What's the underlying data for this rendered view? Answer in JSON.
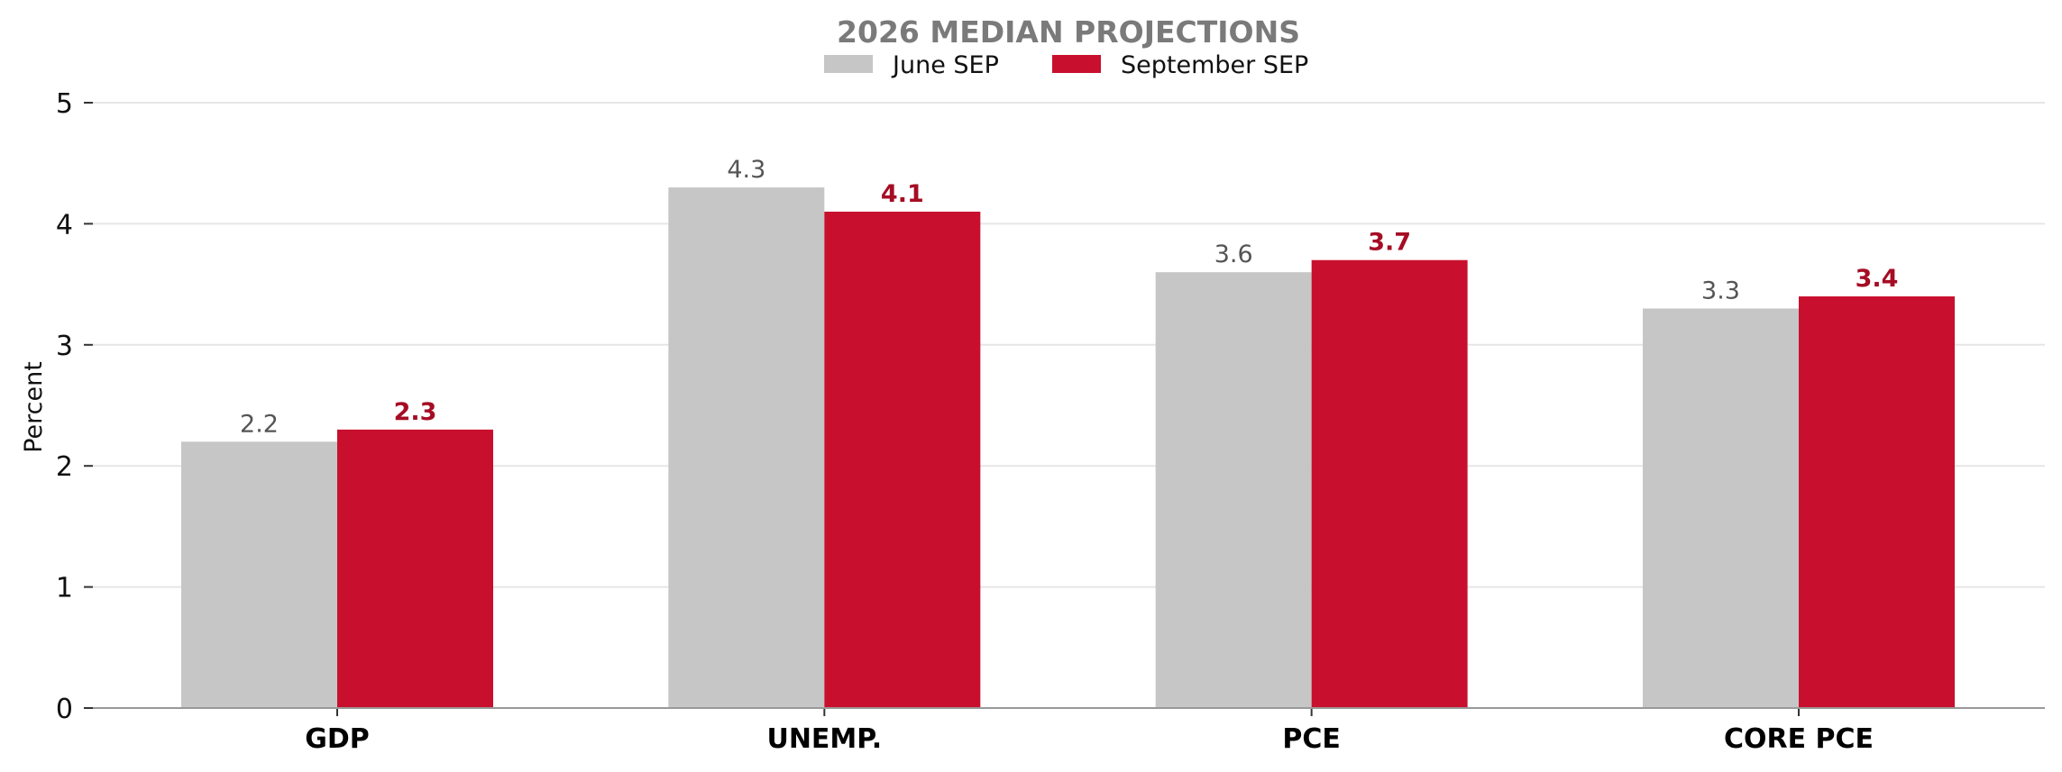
{
  "chart_data": {
    "type": "bar",
    "title": "2026 MEDIAN PROJECTIONS",
    "xlabel": "",
    "ylabel": "Percent",
    "categories": [
      "GDP",
      "UNEMP.",
      "PCE",
      "CORE PCE"
    ],
    "series": [
      {
        "name": "June SEP",
        "values": [
          2.2,
          4.3,
          3.6,
          3.3
        ],
        "labels": [
          "2.2",
          "4.3",
          "3.6",
          "3.3"
        ],
        "color": "#c6c6c6",
        "label_color": "#555555"
      },
      {
        "name": "September SEP",
        "values": [
          2.3,
          4.1,
          3.7,
          3.4
        ],
        "labels": [
          "2.3",
          "4.1",
          "3.7",
          "3.4"
        ],
        "color": "#c8102e",
        "label_color": "#a50d24"
      }
    ],
    "ylim": [
      0,
      5
    ],
    "yticks": [
      0,
      1,
      2,
      3,
      4,
      5
    ],
    "ytick_labels": [
      "0",
      "1",
      "2",
      "3",
      "4",
      "5"
    ],
    "grid": true,
    "legend": "top-center"
  }
}
